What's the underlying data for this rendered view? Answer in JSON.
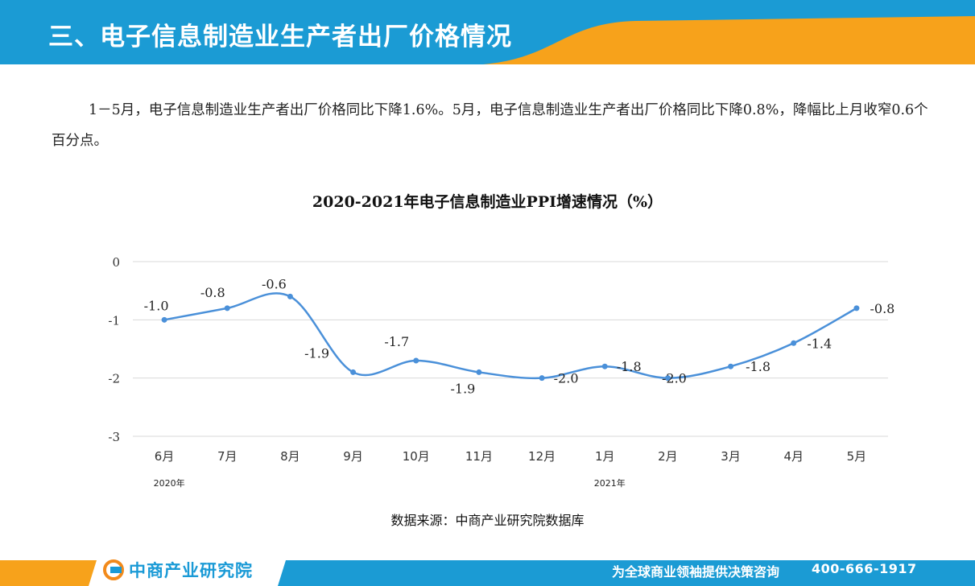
{
  "header": {
    "title": "三、电子信息制造业生产者出厂价格情况",
    "colors": {
      "blue": "#1b9bd4",
      "orange": "#f7a21b"
    }
  },
  "summary": "1－5月，电子信息制造业生产者出厂价格同比下降1.6%。5月，电子信息制造业生产者出厂价格同比下降0.8%，降幅比上月收窄0.6个百分点。",
  "chart_title": "2020-2021年电子信息制造业PPI增速情况（%）",
  "chart_data": {
    "type": "line",
    "title": "2020-2021年电子信息制造业PPI增速情况（%）",
    "categories": [
      "6月",
      "7月",
      "8月",
      "9月",
      "10月",
      "11月",
      "12月",
      "1月",
      "2月",
      "3月",
      "4月",
      "5月"
    ],
    "year_labels": [
      {
        "label": "2020年",
        "index": 0
      },
      {
        "label": "2021年",
        "index": 7
      }
    ],
    "values": [
      -1.0,
      -0.8,
      -0.6,
      -1.9,
      -1.7,
      -1.9,
      -2.0,
      -1.8,
      -2.0,
      -1.8,
      -1.4,
      -0.8
    ],
    "data_labels": [
      "-1.0",
      "-0.8",
      "-0.6",
      "-1.9",
      "-1.7",
      "-1.9",
      "-2.0",
      "-1.8",
      "-2.0",
      "-1.8",
      "-1.4",
      "-0.8"
    ],
    "ylim": [
      -3,
      0
    ],
    "yticks": [
      0,
      -1,
      -2,
      -3
    ],
    "ytick_labels": [
      "0",
      "-1",
      "-2",
      "-3"
    ],
    "grid": true,
    "smooth": true,
    "line_color": "#4a90d9"
  },
  "source": "数据来源：中商产业研究院数据库",
  "footer": {
    "logo_text": "中商产业研究院",
    "slogan": "为全球商业领袖提供决策咨询",
    "phone": "400-666-1917",
    "colors": {
      "orange": "#f7a21b",
      "blue": "#1b9bd4"
    }
  }
}
